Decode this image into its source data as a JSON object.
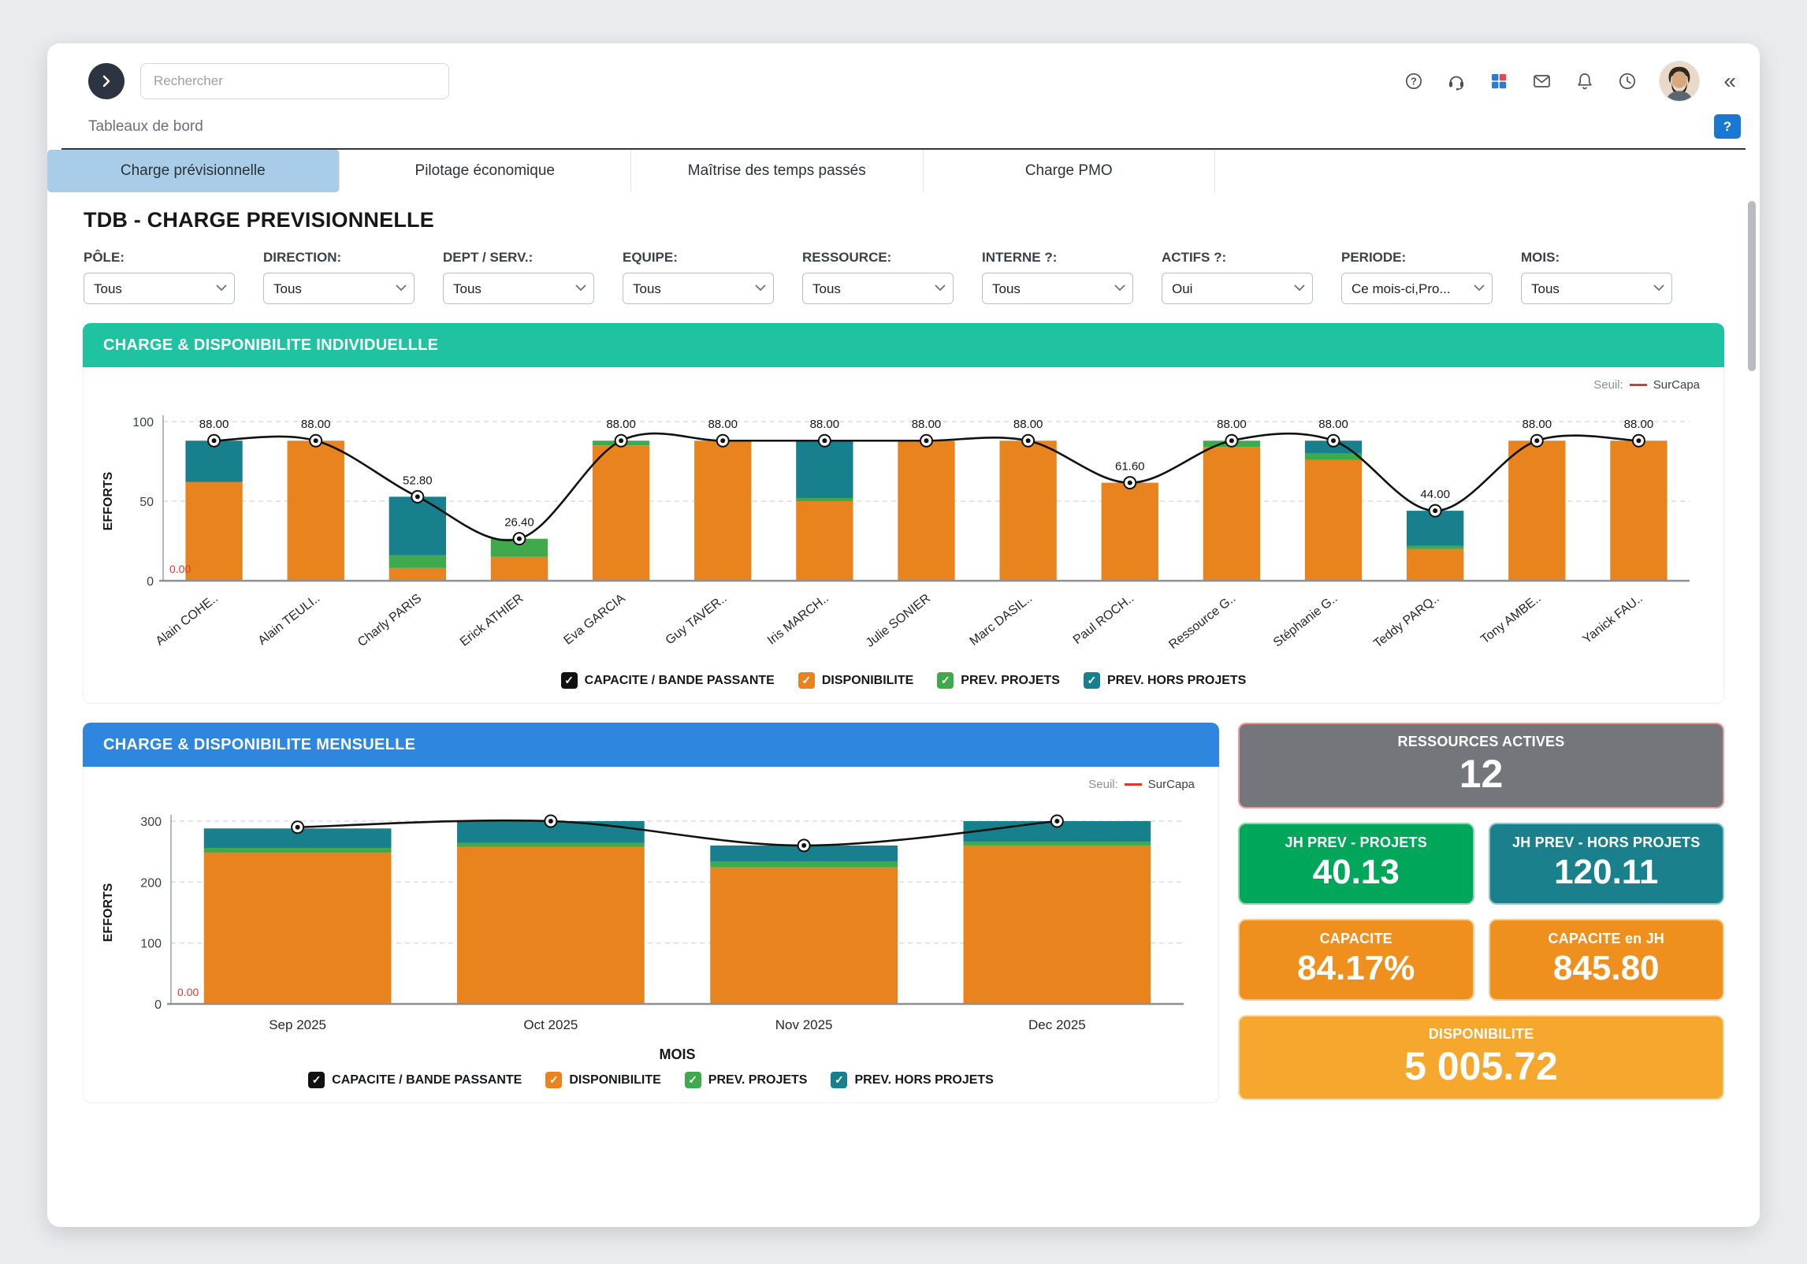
{
  "topbar": {
    "search_placeholder": "Rechercher",
    "collapse_label": "«",
    "icons": [
      "help-icon",
      "support-headset-icon",
      "apps-grid-icon",
      "mail-icon",
      "notifications-bell-icon",
      "history-clock-icon"
    ]
  },
  "breadcrumb": {
    "label": "Tableaux de bord",
    "help_label": "?"
  },
  "tabs": [
    {
      "label": "Charge prévisionnelle",
      "active": true
    },
    {
      "label": "Pilotage économique",
      "active": false
    },
    {
      "label": "Maîtrise des temps passés",
      "active": false
    },
    {
      "label": "Charge PMO",
      "active": false
    }
  ],
  "page_title": "TDB - CHARGE PREVISIONNELLE",
  "filters": [
    {
      "label": "PÔLE:",
      "value": "Tous"
    },
    {
      "label": "DIRECTION:",
      "value": "Tous"
    },
    {
      "label": "DEPT / SERV.:",
      "value": "Tous"
    },
    {
      "label": "EQUIPE:",
      "value": "Tous"
    },
    {
      "label": "RESSOURCE:",
      "value": "Tous"
    },
    {
      "label": "INTERNE ?:",
      "value": "Tous"
    },
    {
      "label": "ACTIFS ?:",
      "value": "Oui"
    },
    {
      "label": "PERIODE:",
      "value": "Ce mois-ci,Pro..."
    },
    {
      "label": "MOIS:",
      "value": "Tous"
    }
  ],
  "colors": {
    "panel_individual_header": "#1fc3a2",
    "panel_monthly_header": "#2e86de",
    "tab_active_bg": "#a9cde8",
    "seuil_red": "#e1362c",
    "bar_orange": "#e8831e",
    "bar_green": "#3fa94c",
    "bar_teal": "#17808c",
    "line_black": "#111111"
  },
  "chart_data": [
    {
      "type": "bar",
      "title": "CHARGE & DISPONIBILITE INDIVIDUELLLE",
      "ylabel": "EFFORTS",
      "xlabel": "",
      "ylim": [
        0,
        100
      ],
      "yticks": [
        0,
        50,
        100
      ],
      "grid": true,
      "legend_position": "bottom",
      "categories": [
        "Alain COHE..",
        "Alain TEULI..",
        "Charly PARIS",
        "Erick ATHIER",
        "Eva GARCIA",
        "Guy TAVER..",
        "Iris MARCH..",
        "Julie SONIER",
        "Marc DASIL..",
        "Paul ROCH..",
        "Ressource G..",
        "Stéphanie G..",
        "Teddy PARQ..",
        "Tony AMBE..",
        "Yanick FAU.."
      ],
      "series": [
        {
          "name": "DISPONIBILITE",
          "color": "#e8831e",
          "values": [
            62,
            88,
            8,
            15,
            85,
            88,
            50,
            88,
            88,
            61.6,
            84,
            76,
            20,
            88,
            88
          ]
        },
        {
          "name": "PREV. PROJETS",
          "color": "#3fa94c",
          "values": [
            0,
            0,
            8,
            11.4,
            3,
            0,
            2,
            0,
            0,
            0,
            4,
            4,
            2,
            0,
            0
          ]
        },
        {
          "name": "PREV. HORS PROJETS",
          "color": "#17808c",
          "values": [
            26,
            0,
            36.8,
            0,
            0,
            0,
            36,
            0,
            0,
            0,
            0,
            8,
            22,
            0,
            0
          ]
        }
      ],
      "line": {
        "name": "CAPACITE / BANDE PASSANTE",
        "color": "#111111",
        "values": [
          88,
          88,
          52.8,
          26.4,
          88,
          88,
          88,
          88,
          88,
          61.6,
          88,
          88,
          44,
          88,
          88
        ],
        "labels": [
          "88.00",
          "88.00",
          "52.80",
          "26.40",
          "88.00",
          "88.00",
          "88.00",
          "88.00",
          "88.00",
          "61.60",
          "88.00",
          "88.00",
          "44.00",
          "88.00",
          "88.00"
        ]
      },
      "threshold": {
        "prefix": "Seuil:",
        "name": "SurCapa",
        "color": "#e1362c"
      },
      "zero_label": "0.00",
      "legend": [
        {
          "label": "CAPACITE / BANDE PASSANTE",
          "color": "#111111"
        },
        {
          "label": "DISPONIBILITE",
          "color": "#e8831e"
        },
        {
          "label": "PREV. PROJETS",
          "color": "#3fa94c"
        },
        {
          "label": "PREV. HORS PROJETS",
          "color": "#17808c"
        }
      ]
    },
    {
      "type": "bar",
      "title": "CHARGE & DISPONIBILITE MENSUELLE",
      "ylabel": "EFFORTS",
      "xlabel": "MOIS",
      "ylim": [
        0,
        300
      ],
      "yticks": [
        0,
        100,
        200,
        300
      ],
      "grid": true,
      "legend_position": "bottom",
      "categories": [
        "Sep 2025",
        "Oct 2025",
        "Nov 2025",
        "Dec 2025"
      ],
      "series": [
        {
          "name": "DISPONIBILITE",
          "color": "#e8831e",
          "values": [
            248,
            258,
            224,
            260
          ]
        },
        {
          "name": "PREV. PROJETS",
          "color": "#3fa94c",
          "values": [
            8,
            6,
            10,
            6
          ]
        },
        {
          "name": "PREV. HORS PROJETS",
          "color": "#17808c",
          "values": [
            32,
            36,
            26,
            34
          ]
        }
      ],
      "line": {
        "name": "CAPACITE / BANDE PASSANTE",
        "color": "#111111",
        "values": [
          290,
          300,
          260,
          300
        ],
        "labels": []
      },
      "threshold": {
        "prefix": "Seuil:",
        "name": "SurCapa",
        "color": "#e1362c"
      },
      "zero_label": "0.00",
      "legend": [
        {
          "label": "CAPACITE / BANDE PASSANTE",
          "color": "#111111"
        },
        {
          "label": "DISPONIBILITE",
          "color": "#e8831e"
        },
        {
          "label": "PREV. PROJETS",
          "color": "#3fa94c"
        },
        {
          "label": "PREV. HORS PROJETS",
          "color": "#17808c"
        }
      ]
    }
  ],
  "kpi_cards": [
    {
      "id": "ressources-actives",
      "title": "RESSOURCES ACTIVES",
      "value": "12",
      "bg": "#73777b",
      "border": "#ef9a9a",
      "wide": true
    },
    {
      "id": "jh-prev-projets",
      "title": "JH PREV - PROJETS",
      "value": "40.13",
      "bg": "#00a65a",
      "border": "#90d4ad",
      "wide": false
    },
    {
      "id": "jh-prev-hors-projets",
      "title": "JH PREV - HORS PROJETS",
      "value": "120.11",
      "bg": "#1a808c",
      "border": "#8fc7cf",
      "wide": false
    },
    {
      "id": "capacite",
      "title": "CAPACITE",
      "value": "84.17%",
      "bg": "#ef8f1e",
      "border": "#f8cf9a",
      "wide": false
    },
    {
      "id": "capacite-en-jh",
      "title": "CAPACITE en JH",
      "value": "845.80",
      "bg": "#ef8f1e",
      "border": "#f8cf9a",
      "wide": false
    },
    {
      "id": "disponibilite",
      "title": "DISPONIBILITE",
      "value": "5 005.72",
      "bg": "#f6a72e",
      "border": "#fbd9a0",
      "wide": true
    }
  ]
}
